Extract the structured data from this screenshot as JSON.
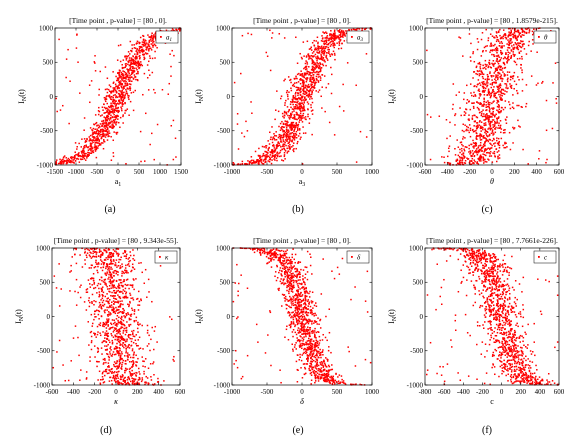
{
  "figure": {
    "chart_data": [
      {
        "type": "scatter",
        "caption": "(a)",
        "title": "[Time point , p-value] = [80 , 0].",
        "xlabel": "a1",
        "xlabel_main": "a",
        "xlabel_sub": "1",
        "xlabel_italic": false,
        "ylabel": "IN(t)",
        "legend_label": "a1",
        "legend_position": "top-right",
        "xlim": [
          -1500,
          1500
        ],
        "ylim": [
          -1000,
          1000
        ],
        "xticks": [
          "-1500",
          "-1000",
          "-500",
          "0",
          "500",
          "1000",
          "1500"
        ],
        "yticks": [
          "-1000",
          "-500",
          "0",
          "500",
          "1000"
        ],
        "pattern": {
          "relationship": "positive",
          "cx": 0,
          "x_half_range": 1000,
          "x_spread": 150,
          "n_points": 1200
        },
        "series": [
          {
            "name": "a1",
            "color": "#ff0000",
            "marker": "dot"
          }
        ],
        "grid": false
      },
      {
        "type": "scatter",
        "caption": "(b)",
        "title": "[Time point , p-value] = [80 , 0].",
        "xlabel": "a3",
        "xlabel_main": "a",
        "xlabel_sub": "3",
        "xlabel_italic": false,
        "ylabel": "IN(t)",
        "legend_label": "a3",
        "legend_position": "top-right",
        "xlim": [
          -1000,
          1000
        ],
        "ylim": [
          -1000,
          1000
        ],
        "xticks": [
          "-1000",
          "-500",
          "0",
          "500",
          "1000"
        ],
        "yticks": [
          "-1000",
          "-500",
          "0",
          "500",
          "1000"
        ],
        "pattern": {
          "relationship": "positive",
          "cx": 0,
          "x_half_range": 500,
          "x_spread": 110,
          "n_points": 1200
        },
        "series": [
          {
            "name": "a3",
            "color": "#ff0000",
            "marker": "dot"
          }
        ],
        "grid": false
      },
      {
        "type": "scatter",
        "caption": "(c)",
        "title": "[Time point , p-value] = [80 , 1.8579e-215].",
        "xlabel": "θ",
        "xlabel_main": "θ",
        "xlabel_sub": "",
        "xlabel_italic": true,
        "ylabel": "IN(t)",
        "legend_label": "θ",
        "legend_position": "top-right",
        "xlim": [
          -600,
          600
        ],
        "ylim": [
          -1000,
          1000
        ],
        "xticks": [
          "-600",
          "-400",
          "-200",
          "0",
          "200",
          "400",
          "600"
        ],
        "yticks": [
          "-1000",
          "-500",
          "0",
          "500",
          "1000"
        ],
        "pattern": {
          "relationship": "positive",
          "cx": 0,
          "x_half_range": 170,
          "x_spread": 110,
          "n_points": 1200
        },
        "series": [
          {
            "name": "θ",
            "color": "#ff0000",
            "marker": "dot"
          }
        ],
        "grid": false
      },
      {
        "type": "scatter",
        "caption": "(d)",
        "title": "[Time point , p-value] = [80 , 9.343e-55].",
        "xlabel": "κ",
        "xlabel_main": "κ",
        "xlabel_sub": "",
        "xlabel_italic": true,
        "ylabel": "IN(t)",
        "legend_label": "κ",
        "legend_position": "top-right",
        "xlim": [
          -600,
          600
        ],
        "ylim": [
          -1000,
          1000
        ],
        "xticks": [
          "-600",
          "-400",
          "-200",
          "0",
          "200",
          "400",
          "600"
        ],
        "yticks": [
          "-1000",
          "-500",
          "0",
          "500",
          "1000"
        ],
        "pattern": {
          "relationship": "negative",
          "cx": 0,
          "x_half_range": 80,
          "x_spread": 130,
          "n_points": 1200
        },
        "series": [
          {
            "name": "κ",
            "color": "#ff0000",
            "marker": "dot"
          }
        ],
        "grid": false
      },
      {
        "type": "scatter",
        "caption": "(e)",
        "title": "[Time point , p-value] = [80 , 0].",
        "xlabel": "δ",
        "xlabel_main": "δ",
        "xlabel_sub": "",
        "xlabel_italic": true,
        "ylabel": "IN(t)",
        "legend_label": "δ",
        "legend_position": "top-right",
        "xlim": [
          -1000,
          1000
        ],
        "ylim": [
          -1000,
          1000
        ],
        "xticks": [
          "-1000",
          "-500",
          "0",
          "500",
          "1000"
        ],
        "yticks": [
          "-1000",
          "-500",
          "0",
          "500",
          "1000"
        ],
        "pattern": {
          "relationship": "negative",
          "cx": 0,
          "x_half_range": 350,
          "x_spread": 110,
          "n_points": 1200
        },
        "series": [
          {
            "name": "δ",
            "color": "#ff0000",
            "marker": "dot"
          }
        ],
        "grid": false
      },
      {
        "type": "scatter",
        "caption": "(f)",
        "title": "[Time point , p-value] = [80 , 7.7661e-226].",
        "xlabel": "c",
        "xlabel_main": "c",
        "xlabel_sub": "",
        "xlabel_italic": false,
        "ylabel": "IN(t)",
        "legend_label": "c",
        "legend_position": "top-right",
        "xlim": [
          -800,
          600
        ],
        "ylim": [
          -1000,
          1000
        ],
        "xticks": [
          "-800",
          "-600",
          "-400",
          "-200",
          "0",
          "200",
          "400",
          "600"
        ],
        "yticks": [
          "-1000",
          "-500",
          "0",
          "500",
          "1000"
        ],
        "pattern": {
          "relationship": "negative",
          "cx": 0,
          "x_half_range": 260,
          "x_spread": 110,
          "n_points": 1200
        },
        "series": [
          {
            "name": "c",
            "color": "#ff0000",
            "marker": "dot"
          }
        ],
        "grid": false
      }
    ]
  }
}
